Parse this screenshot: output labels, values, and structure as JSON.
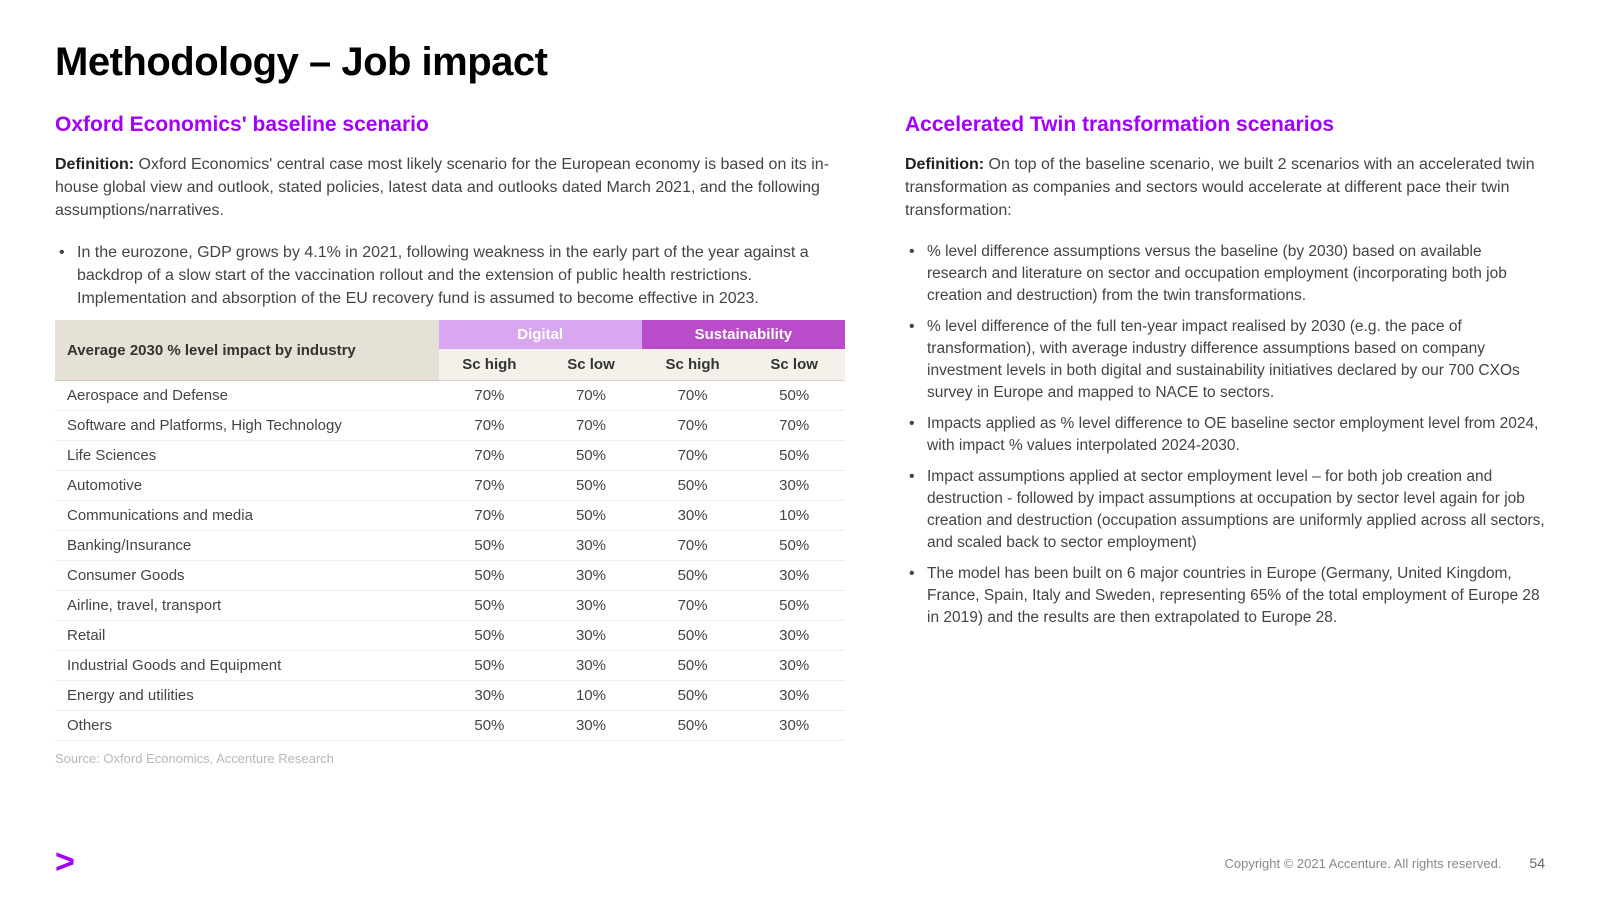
{
  "title": "Methodology – Job impact",
  "left": {
    "heading": "Oxford Economics' baseline scenario",
    "definition_label": "Definition:",
    "definition_text": " Oxford Economics' central case most likely scenario for the European economy is based on its in-house global view and outlook, stated policies, latest data and outlooks dated March 2021, and the following assumptions/narratives.",
    "bullets": [
      "In the eurozone, GDP grows by 4.1% in 2021, following weakness in the early part of the year against a backdrop of a slow start of the vaccination rollout and the extension of public health restrictions. Implementation and absorption of the EU recovery fund is assumed to become effective in 2023."
    ],
    "table": {
      "row_header": "Average 2030 % level impact by industry",
      "groups": [
        {
          "label": "Digital",
          "bg": "#d9a6f0"
        },
        {
          "label": "Sustainability",
          "bg": "#b94cc9"
        }
      ],
      "sub_headers": [
        "Sc high",
        "Sc low",
        "Sc high",
        "Sc low"
      ],
      "rows": [
        {
          "label": "Aerospace and Defense",
          "values": [
            "70%",
            "70%",
            "70%",
            "50%"
          ]
        },
        {
          "label": "Software and Platforms, High Technology",
          "values": [
            "70%",
            "70%",
            "70%",
            "70%"
          ]
        },
        {
          "label": "Life Sciences",
          "values": [
            "70%",
            "50%",
            "70%",
            "50%"
          ]
        },
        {
          "label": "Automotive",
          "values": [
            "70%",
            "50%",
            "50%",
            "30%"
          ]
        },
        {
          "label": "Communications and media",
          "values": [
            "70%",
            "50%",
            "30%",
            "10%"
          ]
        },
        {
          "label": "Banking/Insurance",
          "values": [
            "50%",
            "30%",
            "70%",
            "50%"
          ]
        },
        {
          "label": "Consumer Goods",
          "values": [
            "50%",
            "30%",
            "50%",
            "30%"
          ]
        },
        {
          "label": "Airline, travel, transport",
          "values": [
            "50%",
            "30%",
            "70%",
            "50%"
          ]
        },
        {
          "label": "Retail",
          "values": [
            "50%",
            "30%",
            "50%",
            "30%"
          ]
        },
        {
          "label": "Industrial Goods and Equipment",
          "values": [
            "50%",
            "30%",
            "50%",
            "30%"
          ]
        },
        {
          "label": "Energy and utilities",
          "values": [
            "30%",
            "10%",
            "50%",
            "30%"
          ]
        },
        {
          "label": "Others",
          "values": [
            "50%",
            "30%",
            "50%",
            "30%"
          ]
        }
      ],
      "col_widths": {
        "label": 370,
        "value": 98
      }
    },
    "source": "Source: Oxford Economics, Accenture Research"
  },
  "right": {
    "heading": "Accelerated Twin transformation scenarios",
    "definition_label": "Definition:",
    "definition_text": " On top of the baseline scenario, we built 2 scenarios with an accelerated twin transformation as companies and sectors would accelerate at different pace their twin transformation:",
    "bullets": [
      "% level difference assumptions versus the baseline (by 2030) based on available research and literature on sector and occupation employment (incorporating both job creation and destruction) from the twin transformations.",
      "% level difference of the full ten-year impact realised by 2030 (e.g. the pace of transformation), with average industry difference assumptions based on company investment levels in both digital and sustainability initiatives declared by our 700 CXOs survey in Europe and mapped to NACE to sectors.",
      "Impacts applied as % level difference to OE baseline sector employment level from 2024, with impact % values interpolated 2024-2030.",
      "Impact assumptions applied at sector employment level – for both job creation and destruction - followed by impact assumptions at occupation by sector level again for job creation and destruction (occupation assumptions are uniformly applied across all sectors, and scaled back to sector employment)",
      "The model has been built on 6 major countries in Europe (Germany, United Kingdom, France, Spain, Italy and Sweden, representing 65% of the total employment of Europe 28 in 2019) and the results are then extrapolated to Europe 28."
    ]
  },
  "footer": {
    "logo": ">",
    "copyright": "Copyright © 2021 Accenture. All rights reserved.",
    "page_number": "54"
  },
  "colors": {
    "accent": "#a100ff",
    "table_header_bg": "#e6e1d6",
    "table_sub_bg": "#f3f1ea"
  }
}
